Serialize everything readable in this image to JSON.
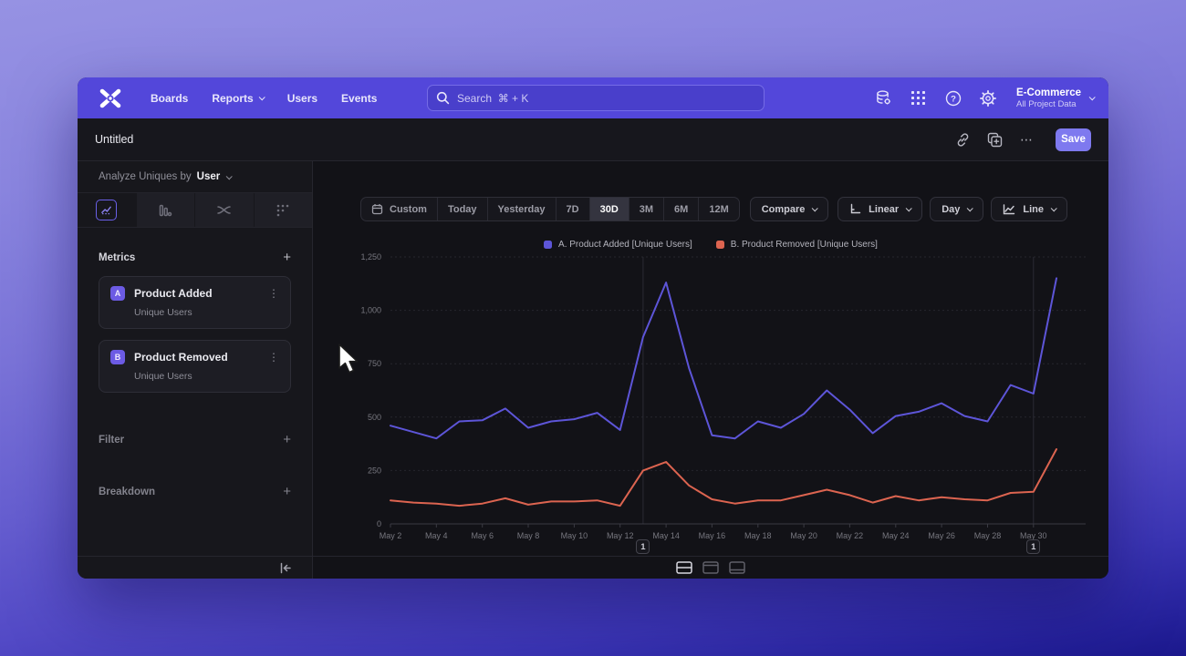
{
  "nav": {
    "items": [
      "Boards",
      "Reports",
      "Users",
      "Events"
    ],
    "search_placeholder": "Search  ⌘ + K",
    "workspace_name": "E-Commerce",
    "workspace_scope": "All Project Data"
  },
  "titlebar": {
    "title": "Untitled",
    "more": "⋯",
    "save": "Save"
  },
  "sidebar": {
    "analyze_prefix": "Analyze Uniques by",
    "analyze_value": "User",
    "metrics_label": "Metrics",
    "add": "+",
    "metrics": [
      {
        "badge": "A",
        "name": "Product Added",
        "sub": "Unique Users",
        "menu": "⋮"
      },
      {
        "badge": "B",
        "name": "Product Removed",
        "sub": "Unique Users",
        "menu": "⋮"
      }
    ],
    "filter_label": "Filter",
    "breakdown_label": "Breakdown"
  },
  "toolbar": {
    "ranges": [
      "Custom",
      "Today",
      "Yesterday",
      "7D",
      "30D",
      "3M",
      "6M",
      "12M"
    ],
    "selected_range": "30D",
    "compare": "Compare",
    "scale": "Linear",
    "interval": "Day",
    "chart_type": "Line"
  },
  "colors": {
    "nav_accent": "#5347da",
    "save_button": "#7e79ef",
    "series_a": "#5d55d8",
    "series_b": "#dc6450"
  },
  "chart_data": {
    "type": "line",
    "title": "",
    "xlabel": "",
    "ylabel": "",
    "ylim": [
      0,
      1250
    ],
    "y_ticks": [
      "0",
      "250",
      "500",
      "750",
      "1,000",
      "1,250"
    ],
    "x_tick_interval": 2,
    "grid": "horizontal-dashed",
    "legend_position": "top-center",
    "categories": [
      "May 2",
      "May 3",
      "May 4",
      "May 5",
      "May 6",
      "May 7",
      "May 8",
      "May 9",
      "May 10",
      "May 11",
      "May 12",
      "May 13",
      "May 14",
      "May 15",
      "May 16",
      "May 17",
      "May 18",
      "May 19",
      "May 20",
      "May 21",
      "May 22",
      "May 23",
      "May 24",
      "May 25",
      "May 26",
      "May 27",
      "May 28",
      "May 29",
      "May 30",
      "May 31"
    ],
    "series": [
      {
        "name": "A. Product Added [Unique Users]",
        "color": "#5d55d8",
        "values": [
          460,
          430,
          400,
          480,
          485,
          540,
          450,
          480,
          490,
          520,
          440,
          875,
          1130,
          730,
          415,
          400,
          480,
          450,
          515,
          625,
          535,
          425,
          505,
          525,
          565,
          505,
          480,
          650,
          610,
          1150
        ]
      },
      {
        "name": "B. Product Removed [Unique Users]",
        "color": "#dc6450",
        "values": [
          110,
          100,
          95,
          85,
          95,
          120,
          90,
          105,
          105,
          110,
          85,
          250,
          290,
          180,
          115,
          95,
          110,
          110,
          135,
          160,
          135,
          100,
          130,
          110,
          125,
          115,
          110,
          145,
          150,
          350
        ]
      }
    ],
    "annotations": [
      {
        "index": 11,
        "label": "1"
      },
      {
        "index": 28,
        "label": "1"
      }
    ]
  }
}
